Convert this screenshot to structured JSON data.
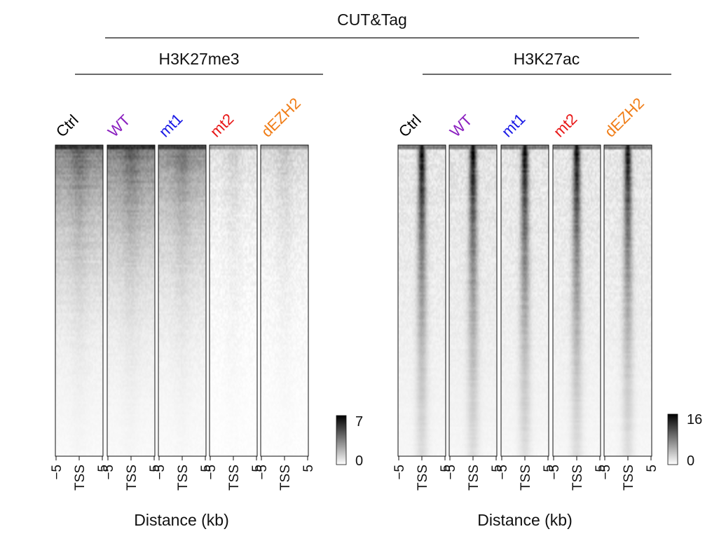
{
  "figure": {
    "header": "CUT&Tag",
    "x_axis_label": "Distance (kb)"
  },
  "chart_data": [
    {
      "type": "heatmap",
      "title": "H3K27me3",
      "colorbar": {
        "min": "0",
        "max": "7",
        "low_color": "#ffffff",
        "high_color": "#000000"
      },
      "xlabel": "Distance (kb)",
      "x_ticks": [
        "−5",
        "TSS",
        "5"
      ],
      "x_range_kb": [
        -5,
        5
      ],
      "samples": [
        {
          "label": "Ctrl",
          "color": "#000000",
          "peak_intensity": 0.78,
          "background": 0.5,
          "center_focus": 0.2
        },
        {
          "label": "WT",
          "color": "#8a1fbf",
          "peak_intensity": 0.8,
          "background": 0.52,
          "center_focus": 0.2
        },
        {
          "label": "mt1",
          "color": "#1a1ae6",
          "peak_intensity": 0.72,
          "background": 0.44,
          "center_focus": 0.2
        },
        {
          "label": "mt2",
          "color": "#e81818",
          "peak_intensity": 0.35,
          "background": 0.12,
          "center_focus": 0.25
        },
        {
          "label": "dEZH2",
          "color": "#f07d17",
          "peak_intensity": 0.38,
          "background": 0.15,
          "center_focus": 0.25
        }
      ]
    },
    {
      "type": "heatmap",
      "title": "H3K27ac",
      "colorbar": {
        "min": "0",
        "max": "16",
        "low_color": "#ffffff",
        "high_color": "#000000"
      },
      "xlabel": "Distance (kb)",
      "x_ticks": [
        "−5",
        "TSS",
        "5"
      ],
      "x_range_kb": [
        -5,
        5
      ],
      "samples": [
        {
          "label": "Ctrl",
          "color": "#000000",
          "peak_intensity": 0.92,
          "background": 0.1,
          "center_focus": 0.85
        },
        {
          "label": "WT",
          "color": "#8a1fbf",
          "peak_intensity": 0.9,
          "background": 0.11,
          "center_focus": 0.85
        },
        {
          "label": "mt1",
          "color": "#1a1ae6",
          "peak_intensity": 0.9,
          "background": 0.1,
          "center_focus": 0.85
        },
        {
          "label": "mt2",
          "color": "#e81818",
          "peak_intensity": 0.88,
          "background": 0.1,
          "center_focus": 0.85
        },
        {
          "label": "dEZH2",
          "color": "#f07d17",
          "peak_intensity": 0.86,
          "background": 0.1,
          "center_focus": 0.85
        }
      ]
    }
  ]
}
